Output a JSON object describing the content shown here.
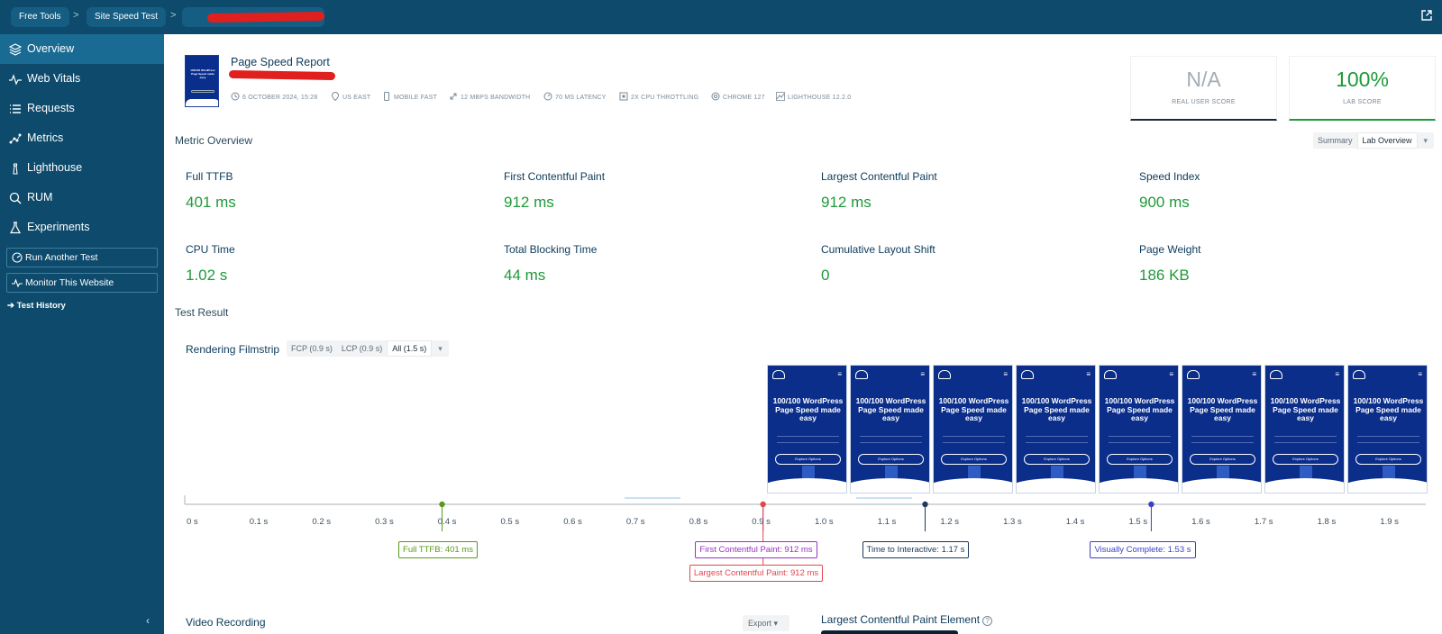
{
  "breadcrumb": {
    "items": [
      {
        "label": "Free Tools"
      },
      {
        "label": "Site Speed Test"
      }
    ],
    "separator": ">"
  },
  "sidebar": {
    "items": [
      {
        "label": "Overview",
        "icon": "layers-icon",
        "active": true
      },
      {
        "label": "Web Vitals",
        "icon": "pulse-icon"
      },
      {
        "label": "Requests",
        "icon": "list-icon"
      },
      {
        "label": "Metrics",
        "icon": "scatter-icon"
      },
      {
        "label": "Lighthouse",
        "icon": "lighthouse-icon"
      },
      {
        "label": "RUM",
        "icon": "search-icon"
      },
      {
        "label": "Experiments",
        "icon": "flask-icon"
      }
    ],
    "run_test": "Run Another Test",
    "monitor": "Monitor This Website",
    "history": "Test History",
    "collapse_glyph": "‹"
  },
  "report": {
    "title": "Page Speed Report",
    "thumb_text": "100/100 WordPress Page Speed made easy",
    "meta": [
      {
        "icon": "clock-icon",
        "text": "6 OCTOBER 2024, 15:28"
      },
      {
        "icon": "location-icon",
        "text": "US EAST"
      },
      {
        "icon": "mobile-icon",
        "text": "MOBILE FAST"
      },
      {
        "icon": "bandwidth-icon",
        "text": "12 MBPS BANDWIDTH"
      },
      {
        "icon": "gauge-icon",
        "text": "70 MS LATENCY"
      },
      {
        "icon": "cpu-icon",
        "text": "2X CPU THROTTLING"
      },
      {
        "icon": "chrome-icon",
        "text": "CHROME 127"
      },
      {
        "icon": "lighthouse-icon",
        "text": "LIGHTHOUSE 12.2.0"
      }
    ]
  },
  "scores": {
    "real_user": {
      "value": "N/A",
      "label": "REAL USER SCORE"
    },
    "lab": {
      "value": "100%",
      "label": "LAB SCORE"
    }
  },
  "metric_overview": {
    "title": "Metric Overview",
    "view_options": [
      "Summary",
      "Lab Overview"
    ],
    "selected_view": "Lab Overview",
    "metrics": [
      {
        "label": "Full TTFB",
        "value": "401 ms"
      },
      {
        "label": "First Contentful Paint",
        "value": "912 ms"
      },
      {
        "label": "Largest Contentful Paint",
        "value": "912 ms"
      },
      {
        "label": "Speed Index",
        "value": "900 ms"
      },
      {
        "label": "CPU Time",
        "value": "1.02 s"
      },
      {
        "label": "Total Blocking Time",
        "value": "44 ms"
      },
      {
        "label": "Cumulative Layout Shift",
        "value": "0"
      },
      {
        "label": "Page Weight",
        "value": "186 KB"
      }
    ]
  },
  "test_result": {
    "title": "Test Result",
    "filmstrip": {
      "title": "Rendering Filmstrip",
      "options": [
        "FCP (0.9 s)",
        "LCP (0.9 s)",
        "All (1.5 s)"
      ],
      "selected": "All (1.5 s)",
      "frame_heading": "100/100 WordPress Page Speed made easy",
      "frame_button": "Explore Options",
      "frame_count": 8
    },
    "timeline": {
      "ticks": [
        "0 s",
        "0.1 s",
        "0.2 s",
        "0.3 s",
        "0.4 s",
        "0.5 s",
        "0.6 s",
        "0.7 s",
        "0.8 s",
        "0.9 s",
        "1.0 s",
        "1.1 s",
        "1.2 s",
        "1.3 s",
        "1.4 s",
        "1.5 s",
        "1.6 s",
        "1.7 s",
        "1.8 s",
        "1.9 s"
      ],
      "markers": [
        {
          "label": "Full TTFB: 401 ms",
          "time_s": 0.401,
          "color": "#5a9a1a"
        },
        {
          "label": "First Contentful Paint: 912 ms",
          "time_s": 0.912,
          "color": "#9b30c8"
        },
        {
          "label": "Largest Contentful Paint: 912 ms",
          "time_s": 0.912,
          "color": "#e2474e"
        },
        {
          "label": "Time to Interactive: 1.17 s",
          "time_s": 1.17,
          "color": "#1d3a5a"
        },
        {
          "label": "Visually Complete: 1.53 s",
          "time_s": 1.53,
          "color": "#3b3fc7"
        }
      ]
    }
  },
  "video": {
    "title": "Video Recording",
    "export_label": "Export"
  },
  "lcp_element": {
    "title": "Largest Contentful Paint Element",
    "help_glyph": "?"
  },
  "colors": {
    "nav_bg": "#0d4a6c",
    "nav_active": "#1a6b93",
    "good": "#1f9a3a",
    "text": "#0b3a5a"
  }
}
